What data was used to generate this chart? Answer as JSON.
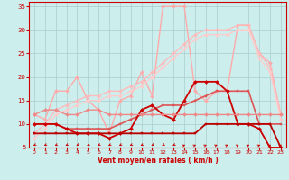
{
  "background_color": "#cceeed",
  "grid_color": "#aacccc",
  "xlabel": "Vent moyen/en rafales ( km/h )",
  "xlim": [
    -0.5,
    23.5
  ],
  "ylim": [
    5,
    36
  ],
  "yticks": [
    5,
    10,
    15,
    20,
    25,
    30,
    35
  ],
  "xticks": [
    0,
    1,
    2,
    3,
    4,
    5,
    6,
    7,
    8,
    9,
    10,
    11,
    12,
    13,
    14,
    15,
    16,
    17,
    18,
    19,
    20,
    21,
    22,
    23
  ],
  "series": [
    {
      "x": [
        0,
        1,
        2,
        3,
        4,
        5,
        6,
        7,
        8,
        9,
        10,
        11,
        12,
        13,
        14,
        15,
        16,
        17,
        18,
        19,
        20,
        21,
        22,
        23
      ],
      "y": [
        12,
        11,
        17,
        17,
        20,
        15,
        13,
        8,
        15,
        16,
        21,
        16,
        35,
        35,
        35,
        17,
        15,
        17,
        17,
        31,
        31,
        25,
        23,
        12
      ],
      "color": "#ffaaaa",
      "lw": 1.0,
      "marker": "D",
      "ms": 2.0
    },
    {
      "x": [
        0,
        1,
        2,
        3,
        4,
        5,
        6,
        7,
        8,
        9,
        10,
        11,
        12,
        13,
        14,
        15,
        16,
        17,
        18,
        19,
        20,
        21,
        22,
        23
      ],
      "y": [
        8,
        10,
        13,
        14,
        15,
        16,
        16,
        17,
        17,
        18,
        19,
        21,
        23,
        25,
        27,
        29,
        30,
        30,
        30,
        31,
        31,
        25,
        22,
        12
      ],
      "color": "#ffbbbb",
      "lw": 1.0,
      "marker": "D",
      "ms": 2.0
    },
    {
      "x": [
        0,
        1,
        2,
        3,
        4,
        5,
        6,
        7,
        8,
        9,
        10,
        11,
        12,
        13,
        14,
        15,
        16,
        17,
        18,
        19,
        20,
        21,
        22,
        23
      ],
      "y": [
        7,
        9,
        12,
        13,
        14,
        15,
        15,
        16,
        16,
        17,
        18,
        20,
        22,
        24,
        26,
        28,
        29,
        29,
        29,
        30,
        30,
        24,
        21,
        11
      ],
      "color": "#ffcccc",
      "lw": 1.0,
      "marker": "D",
      "ms": 2.0
    },
    {
      "x": [
        0,
        1,
        2,
        3,
        4,
        5,
        6,
        7,
        8,
        9,
        10,
        11,
        12,
        13,
        14,
        15,
        16,
        17,
        18,
        19,
        20,
        21,
        22,
        23
      ],
      "y": [
        10,
        10,
        10,
        9,
        9,
        9,
        9,
        9,
        10,
        11,
        12,
        13,
        14,
        14,
        14,
        15,
        16,
        17,
        17,
        17,
        17,
        10,
        10,
        10
      ],
      "color": "#dd5555",
      "lw": 1.2,
      "marker": "s",
      "ms": 2.0
    },
    {
      "x": [
        0,
        1,
        2,
        3,
        4,
        5,
        6,
        7,
        8,
        9,
        10,
        11,
        12,
        13,
        14,
        15,
        16,
        17,
        18,
        19,
        20,
        21,
        22,
        23
      ],
      "y": [
        10,
        10,
        10,
        9,
        8,
        8,
        8,
        7,
        8,
        9,
        13,
        14,
        12,
        11,
        15,
        19,
        19,
        19,
        17,
        10,
        10,
        9,
        5,
        5
      ],
      "color": "#cc0000",
      "lw": 1.3,
      "marker": "D",
      "ms": 2.0
    },
    {
      "x": [
        0,
        1,
        2,
        3,
        4,
        5,
        6,
        7,
        8,
        9,
        10,
        11,
        12,
        13,
        14,
        15,
        16,
        17,
        18,
        19,
        20,
        21,
        22,
        23
      ],
      "y": [
        8,
        8,
        8,
        8,
        8,
        8,
        8,
        8,
        8,
        8,
        8,
        8,
        8,
        8,
        8,
        8,
        10,
        10,
        10,
        10,
        10,
        10,
        10,
        5
      ],
      "color": "#bb0000",
      "lw": 1.3,
      "marker": "s",
      "ms": 2.0
    },
    {
      "x": [
        0,
        1,
        2,
        3,
        4,
        5,
        6,
        7,
        8,
        9,
        10,
        11,
        12,
        13,
        14,
        15,
        16,
        17,
        18,
        19,
        20,
        21,
        22,
        23
      ],
      "y": [
        12,
        13,
        13,
        12,
        12,
        13,
        13,
        12,
        12,
        12,
        12,
        12,
        12,
        12,
        12,
        12,
        12,
        12,
        12,
        12,
        12,
        12,
        12,
        12
      ],
      "color": "#ee8888",
      "lw": 1.0,
      "marker": "D",
      "ms": 2.0
    }
  ],
  "arrow_dirs": [
    225,
    225,
    225,
    225,
    225,
    225,
    225,
    225,
    225,
    225,
    225,
    225,
    225,
    225,
    45,
    45,
    45,
    45,
    45,
    45,
    45,
    45,
    45,
    45
  ]
}
